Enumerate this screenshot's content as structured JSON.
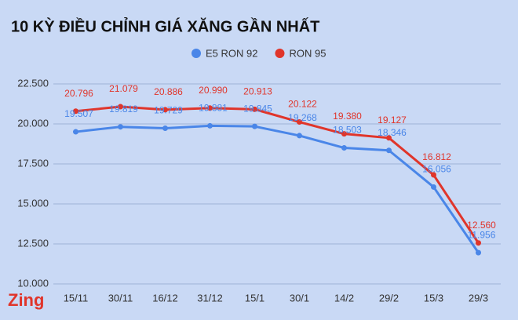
{
  "chart_data": {
    "type": "line",
    "title": "10 KỲ ĐIỀU CHỈNH GIÁ XĂNG GẦN NHẤT",
    "logo": "Zing",
    "categories": [
      "15/11",
      "30/11",
      "16/12",
      "31/12",
      "15/1",
      "30/1",
      "14/2",
      "29/2",
      "15/3",
      "29/3"
    ],
    "series": [
      {
        "name": "E5 RON 92",
        "color": "#4a86e8",
        "values": [
          19507,
          19819,
          19729,
          19881,
          19845,
          19268,
          18503,
          18346,
          16056,
          11956
        ],
        "value_labels": [
          "19.507",
          "19.819",
          "19.729",
          "19.881",
          "19.845",
          "19.268",
          "18.503",
          "18.346",
          "16.056",
          "11.956"
        ]
      },
      {
        "name": "RON 95",
        "color": "#e0352b",
        "values": [
          20796,
          21079,
          20886,
          20990,
          20913,
          20122,
          19380,
          19127,
          16812,
          12560
        ],
        "value_labels": [
          "20.796",
          "21.079",
          "20.886",
          "20.990",
          "20.913",
          "20.122",
          "19.380",
          "19.127",
          "16.812",
          "12.560"
        ]
      }
    ],
    "ylim": [
      10000,
      22500
    ],
    "yticks": [
      {
        "value": 10000,
        "label": "10.000"
      },
      {
        "value": 12500,
        "label": "12.500"
      },
      {
        "value": 15000,
        "label": "15.000"
      },
      {
        "value": 17500,
        "label": "17.500"
      },
      {
        "value": 20000,
        "label": "20.000"
      },
      {
        "value": 22500,
        "label": "22.500"
      }
    ],
    "grid": true,
    "legend": "top"
  }
}
